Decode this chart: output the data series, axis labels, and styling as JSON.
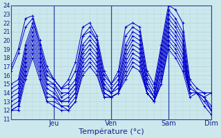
{
  "xlabel": "Température (°c)",
  "ylim": [
    11,
    24
  ],
  "xlim_hours": 84,
  "background_color": "#cce8ec",
  "grid_color": "#aaccd4",
  "line_color": "#0000cc",
  "day_tick_hours": [
    18,
    42,
    66,
    84
  ],
  "day_labels": [
    "Jeu",
    "Ven",
    "Sam",
    "Dim"
  ],
  "yticks": [
    11,
    12,
    13,
    14,
    15,
    16,
    17,
    18,
    19,
    20,
    21,
    22,
    23,
    24
  ],
  "ensemble_lines": [
    {
      "x": [
        0,
        3,
        6,
        9,
        12,
        15,
        18,
        21,
        24,
        27,
        30,
        33,
        36,
        39,
        42,
        45,
        48,
        51,
        54,
        57,
        60,
        63,
        66,
        69,
        72,
        75,
        78,
        81,
        84
      ],
      "y": [
        17.0,
        19.0,
        22.5,
        22.8,
        20.0,
        17.0,
        15.5,
        14.5,
        15.5,
        17.5,
        21.5,
        22.0,
        20.5,
        16.5,
        15.0,
        16.5,
        21.5,
        22.0,
        21.5,
        16.5,
        15.0,
        19.5,
        24.0,
        23.5,
        22.0,
        15.5,
        14.5,
        14.0,
        14.0
      ]
    },
    {
      "x": [
        0,
        3,
        6,
        9,
        12,
        15,
        18,
        21,
        24,
        27,
        30,
        33,
        36,
        39,
        42,
        45,
        48,
        51,
        54,
        57,
        60,
        63,
        66,
        69,
        72,
        75,
        78,
        81,
        84
      ],
      "y": [
        16.5,
        18.5,
        21.5,
        22.5,
        19.5,
        16.5,
        15.5,
        14.5,
        15.0,
        16.5,
        20.5,
        21.5,
        20.0,
        16.0,
        15.0,
        16.0,
        20.5,
        21.5,
        21.0,
        16.0,
        14.5,
        19.0,
        23.5,
        22.5,
        21.0,
        15.0,
        14.0,
        13.5,
        14.0
      ]
    },
    {
      "x": [
        0,
        3,
        6,
        9,
        12,
        15,
        18,
        21,
        24,
        27,
        30,
        33,
        36,
        39,
        42,
        45,
        48,
        51,
        54,
        57,
        60,
        63,
        66,
        69,
        72,
        75,
        78,
        81,
        84
      ],
      "y": [
        15.0,
        15.5,
        19.5,
        22.0,
        19.5,
        16.0,
        15.5,
        14.5,
        14.5,
        15.5,
        20.5,
        21.0,
        20.0,
        15.5,
        14.5,
        15.5,
        19.5,
        21.0,
        20.5,
        15.5,
        14.0,
        18.5,
        23.0,
        22.0,
        20.5,
        14.5,
        14.0,
        14.0,
        14.0
      ]
    },
    {
      "x": [
        0,
        3,
        6,
        9,
        12,
        15,
        18,
        21,
        24,
        27,
        30,
        33,
        36,
        39,
        42,
        45,
        48,
        51,
        54,
        57,
        60,
        63,
        66,
        69,
        72,
        75,
        78,
        81,
        84
      ],
      "y": [
        14.5,
        15.0,
        19.0,
        21.5,
        19.0,
        15.5,
        15.0,
        14.0,
        14.0,
        15.0,
        19.5,
        20.5,
        19.5,
        15.0,
        14.0,
        15.0,
        19.0,
        20.5,
        20.0,
        15.0,
        13.5,
        18.0,
        22.5,
        21.5,
        20.0,
        14.0,
        14.0,
        14.0,
        14.0
      ]
    },
    {
      "x": [
        0,
        3,
        6,
        9,
        12,
        15,
        18,
        21,
        24,
        27,
        30,
        33,
        36,
        39,
        42,
        45,
        48,
        51,
        54,
        57,
        60,
        63,
        66,
        69,
        72,
        75,
        78,
        81,
        84
      ],
      "y": [
        14.0,
        14.5,
        18.5,
        21.0,
        18.5,
        15.0,
        15.0,
        13.5,
        14.0,
        15.0,
        19.0,
        20.0,
        19.0,
        14.5,
        14.0,
        15.0,
        18.5,
        20.0,
        19.5,
        15.0,
        13.5,
        17.5,
        22.0,
        21.0,
        19.5,
        14.0,
        14.0,
        14.0,
        14.0
      ]
    },
    {
      "x": [
        0,
        3,
        6,
        9,
        12,
        15,
        18,
        21,
        24,
        27,
        30,
        33,
        36,
        39,
        42,
        45,
        48,
        51,
        54,
        57,
        60,
        63,
        66,
        69,
        72,
        75,
        78,
        81,
        84
      ],
      "y": [
        13.5,
        14.0,
        18.0,
        20.5,
        18.0,
        15.0,
        14.5,
        13.0,
        13.5,
        14.5,
        18.5,
        19.5,
        18.5,
        14.5,
        14.0,
        14.5,
        18.0,
        19.5,
        19.0,
        14.5,
        13.5,
        17.0,
        21.5,
        20.5,
        19.0,
        14.0,
        14.0,
        14.0,
        14.0
      ]
    },
    {
      "x": [
        0,
        3,
        6,
        9,
        12,
        15,
        18,
        21,
        24,
        27,
        30,
        33,
        36,
        39,
        42,
        45,
        48,
        51,
        54,
        57,
        60,
        63,
        66,
        69,
        72,
        75,
        78,
        81,
        84
      ],
      "y": [
        13.0,
        13.5,
        17.5,
        20.0,
        17.5,
        14.5,
        14.0,
        13.0,
        13.0,
        14.0,
        18.0,
        19.0,
        18.0,
        14.0,
        13.5,
        14.0,
        17.5,
        19.0,
        18.5,
        14.0,
        13.0,
        16.5,
        21.0,
        20.0,
        18.5,
        14.0,
        14.0,
        13.5,
        12.5
      ]
    },
    {
      "x": [
        0,
        3,
        6,
        9,
        12,
        15,
        18,
        21,
        24,
        27,
        30,
        33,
        36,
        39,
        42,
        45,
        48,
        51,
        54,
        57,
        60,
        63,
        66,
        69,
        72,
        75,
        78,
        81,
        84
      ],
      "y": [
        12.5,
        13.0,
        17.0,
        19.5,
        17.0,
        14.0,
        13.5,
        13.0,
        13.0,
        14.0,
        17.5,
        18.5,
        17.5,
        14.0,
        13.5,
        14.0,
        17.0,
        18.5,
        18.0,
        14.0,
        13.0,
        16.0,
        20.5,
        19.5,
        18.0,
        14.0,
        14.0,
        13.5,
        12.0
      ]
    },
    {
      "x": [
        0,
        3,
        6,
        9,
        12,
        15,
        18,
        21,
        24,
        27,
        30,
        33,
        36,
        39,
        42,
        45,
        48,
        51,
        54,
        57,
        60,
        63,
        66,
        69,
        72,
        75,
        78,
        81,
        84
      ],
      "y": [
        12.0,
        12.5,
        16.5,
        19.0,
        16.5,
        13.5,
        13.5,
        12.5,
        12.5,
        13.5,
        17.0,
        18.0,
        17.0,
        14.0,
        13.5,
        14.0,
        16.5,
        18.0,
        17.5,
        14.0,
        13.0,
        15.5,
        20.0,
        19.0,
        17.5,
        14.0,
        14.0,
        13.5,
        12.0
      ]
    },
    {
      "x": [
        0,
        3,
        6,
        9,
        12,
        15,
        18,
        21,
        24,
        27,
        30,
        33,
        36,
        39,
        42,
        45,
        48,
        51,
        54,
        57,
        60,
        63,
        66,
        69,
        72,
        75,
        78,
        81,
        84
      ],
      "y": [
        12.0,
        12.5,
        16.0,
        18.5,
        16.0,
        13.0,
        13.0,
        12.5,
        12.0,
        13.0,
        16.5,
        17.5,
        16.5,
        13.5,
        13.5,
        14.0,
        16.0,
        17.5,
        17.0,
        14.0,
        13.0,
        15.0,
        19.5,
        18.5,
        17.0,
        14.0,
        14.0,
        13.0,
        12.0
      ]
    },
    {
      "x": [
        0,
        3,
        6,
        9,
        12,
        15,
        18,
        21,
        24,
        27,
        30,
        33,
        36,
        39,
        42,
        45,
        48,
        51,
        54,
        57,
        60,
        63,
        66,
        69,
        72,
        75,
        78,
        81,
        84
      ],
      "y": [
        12.0,
        12.0,
        15.5,
        18.0,
        15.5,
        13.0,
        12.5,
        12.0,
        12.0,
        13.0,
        16.0,
        17.0,
        16.0,
        13.5,
        13.5,
        14.0,
        15.5,
        17.0,
        16.5,
        14.0,
        13.0,
        15.0,
        19.0,
        18.0,
        16.5,
        13.5,
        14.0,
        12.5,
        11.5
      ]
    }
  ]
}
